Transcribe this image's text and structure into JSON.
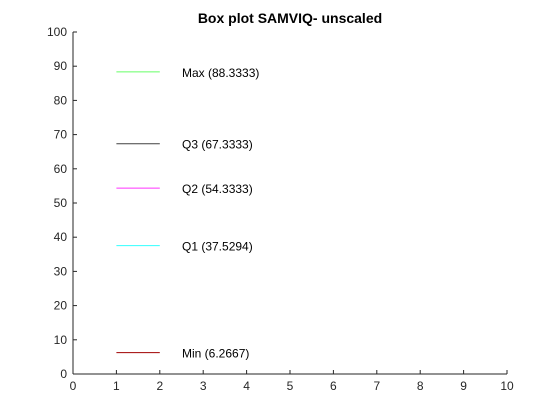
{
  "chart_data": {
    "type": "line",
    "title": "Box plot SAMVIQ- unscaled",
    "xlabel": "",
    "ylabel": "",
    "xlim": [
      0,
      10
    ],
    "ylim": [
      0,
      100
    ],
    "x_ticks": [
      "0",
      "1",
      "2",
      "3",
      "4",
      "5",
      "6",
      "7",
      "8",
      "9",
      "10"
    ],
    "y_ticks": [
      "0",
      "10",
      "20",
      "30",
      "40",
      "50",
      "60",
      "70",
      "80",
      "90",
      "100"
    ],
    "grid": false,
    "series": [
      {
        "key": "max",
        "x": [
          1,
          2
        ],
        "y": 88.3333,
        "color": "#66ff66",
        "label": "Max (88.3333)"
      },
      {
        "key": "q3",
        "x": [
          1,
          2
        ],
        "y": 67.3333,
        "color": "#404040",
        "label": "Q3 (67.3333)"
      },
      {
        "key": "q2",
        "x": [
          1,
          2
        ],
        "y": 54.3333,
        "color": "#ff33ff",
        "label": "Q2 (54.3333)"
      },
      {
        "key": "q1",
        "x": [
          1,
          2
        ],
        "y": 37.5294,
        "color": "#33ffff",
        "label": "Q1 (37.5294)"
      },
      {
        "key": "min",
        "x": [
          1,
          2
        ],
        "y": 6.2667,
        "color": "#a00000",
        "label": "Min (6.2667)"
      }
    ]
  }
}
